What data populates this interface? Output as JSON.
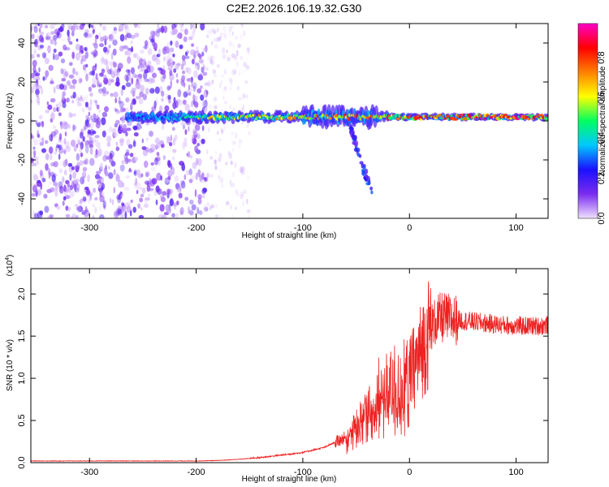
{
  "chart_data": [
    {
      "type": "heatmap",
      "title": "C2E2.2026.106.19.32.G30",
      "xlabel": "Height of straight line (km)",
      "ylabel": "Frequency (Hz)",
      "xlim": [
        -355,
        130
      ],
      "ylim": [
        -50,
        50
      ],
      "xticks": [
        "-300",
        "-200",
        "-100",
        "0",
        "100"
      ],
      "yticks": [
        "-40",
        "-20",
        "0",
        "20",
        "40"
      ],
      "grid": false,
      "colorbar": {
        "label": "Normalized spectral amplitude",
        "range": [
          0,
          0.97
        ],
        "ticks": [
          "0.0",
          "0.2",
          "0.4",
          "0.6",
          "0.8"
        ],
        "colors": [
          "#f0e0ff",
          "#7a2cf0",
          "#1a10ff",
          "#00c8ff",
          "#00ff60",
          "#ffff00",
          "#ff8000",
          "#ff0000",
          "#ff00c8"
        ]
      },
      "regions": [
        {
          "name": "noise",
          "x": [
            -355,
            -190
          ],
          "freq_spread": 50,
          "amplitude": 0.12
        },
        {
          "name": "sparse-noise",
          "x": [
            -190,
            -150
          ],
          "freq_spread": 50,
          "amplitude": 0.05
        },
        {
          "name": "signal-band",
          "x": [
            -265,
            130
          ],
          "freq_center": 2,
          "freq_halfwidth": 4,
          "amplitude_max": 0.97
        },
        {
          "name": "tail",
          "x": [
            -55,
            -35
          ],
          "freq": [
            -5,
            -38
          ],
          "amplitude": 0.2
        }
      ]
    },
    {
      "type": "line",
      "xlabel": "Height of straight line (km)",
      "ylabel": "SNR (10 * v/v)",
      "yscale_note": "(x10",
      "yscale_exp": "4",
      "xlim": [
        -355,
        130
      ],
      "ylim": [
        0,
        2.3
      ],
      "xticks": [
        "-300",
        "-200",
        "-100",
        "0",
        "100"
      ],
      "yticks": [
        "0.0",
        "0.5",
        "1.0",
        "1.5",
        "2.0"
      ],
      "grid": false,
      "series": [
        {
          "name": "SNR",
          "color": "#ee2222",
          "x": [
            -355,
            -300,
            -250,
            -200,
            -180,
            -160,
            -140,
            -120,
            -100,
            -80,
            -60,
            -50,
            -40,
            -30,
            -20,
            -10,
            0,
            5,
            10,
            15,
            20,
            25,
            30,
            40,
            60,
            80,
            100,
            120,
            130
          ],
          "y": [
            0.02,
            0.02,
            0.02,
            0.02,
            0.025,
            0.04,
            0.06,
            0.09,
            0.12,
            0.18,
            0.3,
            0.5,
            0.7,
            0.85,
            0.95,
            1.0,
            1.05,
            1.15,
            1.3,
            1.45,
            1.6,
            1.68,
            1.72,
            1.7,
            1.67,
            1.64,
            1.62,
            1.62,
            1.63
          ]
        }
      ]
    }
  ]
}
